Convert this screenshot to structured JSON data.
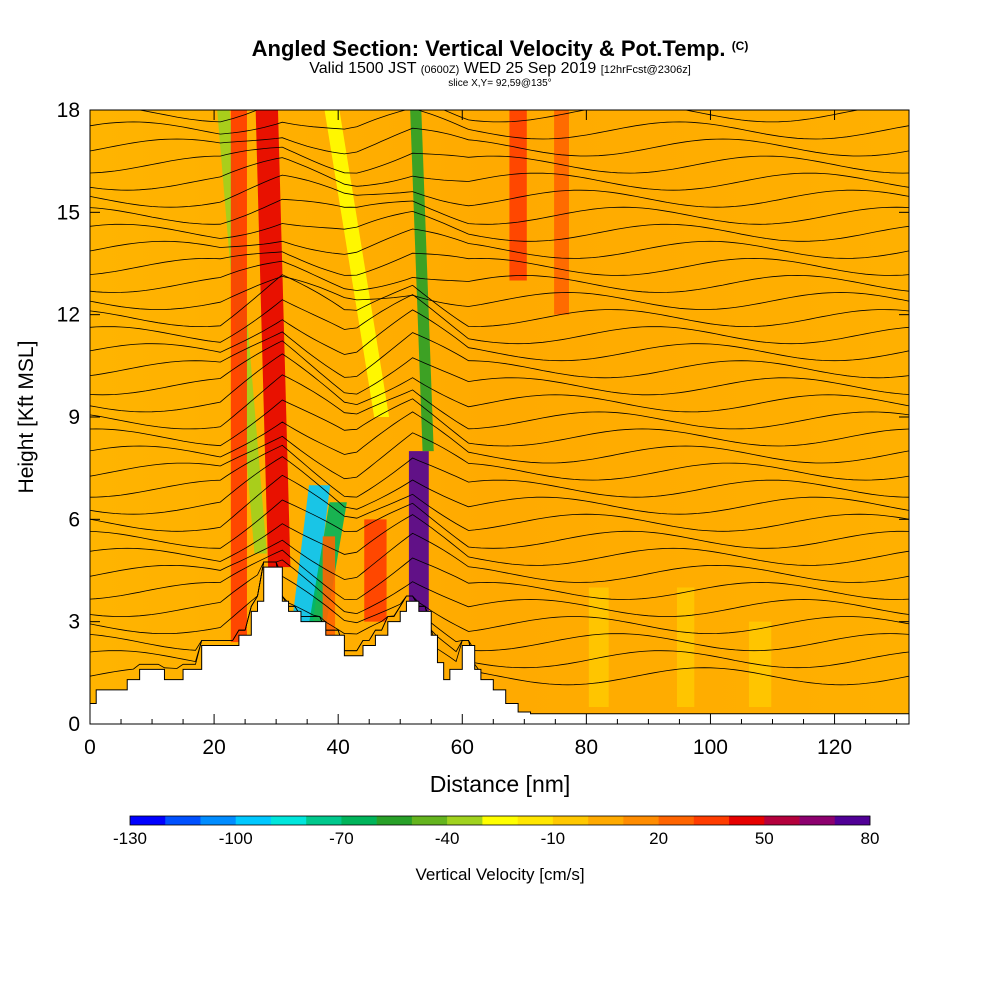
{
  "header": {
    "title": "Angled Section: Vertical Velocity & Pot.Temp.",
    "title_units": "(C)",
    "valid_prefix": "Valid 1500 JST",
    "valid_utc": "(0600Z)",
    "valid_date": "WED 25 Sep 2019",
    "forecast": "[12hrFcst@2306z]",
    "slice": "slice X,Y= 92,59@135°"
  },
  "chart_data": {
    "type": "heatmap",
    "xlabel": "Distance [nm]",
    "ylabel": "Height [Kft MSL]",
    "xlim": [
      0,
      132
    ],
    "ylim": [
      0,
      18
    ],
    "x_ticks": [
      0,
      20,
      40,
      60,
      80,
      100,
      120
    ],
    "y_ticks": [
      0,
      3,
      6,
      9,
      12,
      15,
      18
    ],
    "colorbar": {
      "label": "Vertical Velocity [cm/s]",
      "min": -130,
      "max": 80,
      "step": 10,
      "tick_labels": [
        "-130",
        "-100",
        "-70",
        "-40",
        "-10",
        "20",
        "50",
        "80"
      ],
      "colors": [
        "#0000ff",
        "#0050ff",
        "#008cff",
        "#00c8ff",
        "#00e6dc",
        "#00c88c",
        "#00b45a",
        "#28a028",
        "#64b41e",
        "#a0d21e",
        "#ffff00",
        "#ffe600",
        "#ffc800",
        "#ffaa00",
        "#ff8c00",
        "#ff6400",
        "#ff3c00",
        "#e60000",
        "#b4003c",
        "#8c006e",
        "#500096"
      ]
    },
    "background_color": "#ffaa00",
    "terrain": [
      [
        0,
        0.6
      ],
      [
        1,
        1.0
      ],
      [
        6,
        1.3
      ],
      [
        8,
        1.6
      ],
      [
        12,
        1.3
      ],
      [
        15,
        1.6
      ],
      [
        18,
        2.3
      ],
      [
        24,
        2.6
      ],
      [
        26,
        3.3
      ],
      [
        27,
        3.6
      ],
      [
        28,
        4.6
      ],
      [
        30,
        4.6
      ],
      [
        31,
        3.6
      ],
      [
        32,
        3.3
      ],
      [
        34,
        3.0
      ],
      [
        36,
        3.0
      ],
      [
        38,
        2.6
      ],
      [
        41,
        2.0
      ],
      [
        44,
        2.3
      ],
      [
        46,
        2.6
      ],
      [
        48,
        3.0
      ],
      [
        50,
        3.3
      ],
      [
        51,
        3.6
      ],
      [
        53,
        3.3
      ],
      [
        55,
        2.6
      ],
      [
        56,
        1.8
      ],
      [
        57,
        1.3
      ],
      [
        58,
        1.6
      ],
      [
        60,
        2.3
      ],
      [
        62,
        1.6
      ],
      [
        63,
        1.3
      ],
      [
        65,
        1.0
      ],
      [
        67,
        0.6
      ],
      [
        69,
        0.35
      ],
      [
        71,
        0.3
      ],
      [
        132,
        0.3
      ]
    ],
    "features": [
      {
        "x": 30.5,
        "w": 1.8,
        "z0": 4.6,
        "z1": 18,
        "lean": -2,
        "value": 40
      },
      {
        "x": 27.5,
        "w": 1.0,
        "z0": 5,
        "z1": 18,
        "lean": -6,
        "value": -40
      },
      {
        "x": 24,
        "w": 1.3,
        "z0": 2.4,
        "z1": 18,
        "lean": 0,
        "value": 30
      },
      {
        "x": 34,
        "w": 1.7,
        "z0": 2.6,
        "z1": 7,
        "lean": 3,
        "value": -100
      },
      {
        "x": 36,
        "w": 1.4,
        "z0": 2.2,
        "z1": 6.5,
        "lean": 4,
        "value": -70
      },
      {
        "x": 38.5,
        "w": 1.0,
        "z0": 2.2,
        "z1": 5.5,
        "lean": 0,
        "value": 20
      },
      {
        "x": 46,
        "w": 1.8,
        "z0": 3,
        "z1": 6,
        "lean": 0,
        "value": 30
      },
      {
        "x": 53,
        "w": 1.6,
        "z0": 3.3,
        "z1": 8,
        "lean": 0,
        "value": 80
      },
      {
        "x": 54.5,
        "w": 0.9,
        "z0": 8,
        "z1": 18,
        "lean": -2,
        "value": -60
      },
      {
        "x": 47,
        "w": 1.2,
        "z0": 9,
        "z1": 18,
        "lean": -8,
        "value": -30
      },
      {
        "x": 69,
        "w": 1.4,
        "z0": 13,
        "z1": 18,
        "lean": 0,
        "value": 30
      },
      {
        "x": 76,
        "w": 1.2,
        "z0": 12,
        "z1": 18,
        "lean": 0,
        "value": 20
      },
      {
        "x": 82,
        "w": 1.6,
        "z0": 0.5,
        "z1": 4,
        "lean": 0,
        "value": -10
      },
      {
        "x": 96,
        "w": 1.4,
        "z0": 0.5,
        "z1": 4,
        "lean": 0,
        "value": -10
      },
      {
        "x": 108,
        "w": 1.8,
        "z0": 0.5,
        "z1": 3,
        "lean": 0,
        "value": -10
      }
    ]
  }
}
